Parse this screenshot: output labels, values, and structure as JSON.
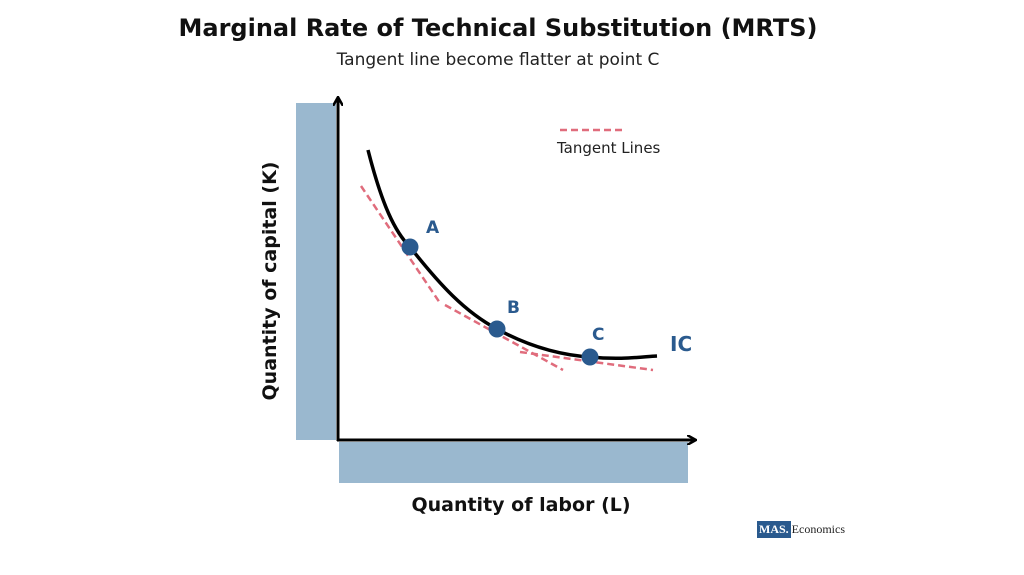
{
  "title": "Marginal Rate of Technical Substitution (MRTS)",
  "subtitle": "Tangent line become flatter at point C",
  "diagram": {
    "x_axis_label": "Quantity of labor (L)",
    "y_axis_label": "Quantity of capital (K)",
    "curve_label": "IC",
    "points": [
      "A",
      "B",
      "C"
    ],
    "legend": "Tangent Lines",
    "colors": {
      "curve": "#000000",
      "points": "#2a5a8e",
      "tangent": "#e06c7c",
      "axis_bars": "#9ab8cf",
      "labels": "#2a5a8e"
    }
  },
  "logo": {
    "mark": "MAS.",
    "name": "Economics"
  }
}
